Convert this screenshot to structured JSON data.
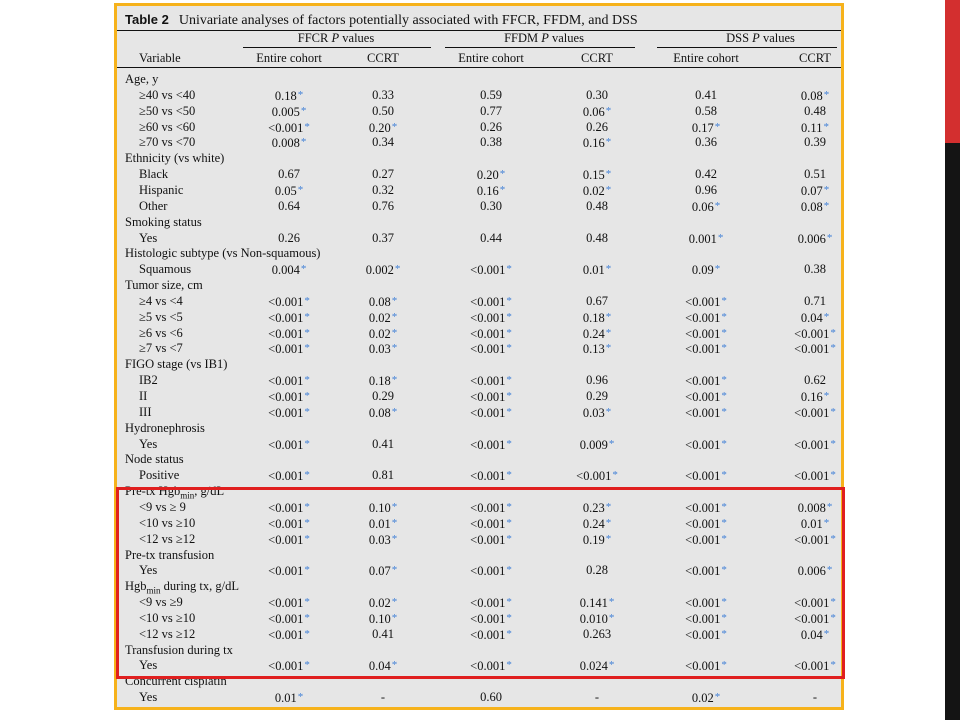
{
  "caption": {
    "table_no": "Table 2",
    "text": "Univariate analyses of factors potentially associated with FFCR, FFDM, and DSS"
  },
  "group_headers": [
    "FFCR P values",
    "FFDM P values",
    "DSS P values"
  ],
  "col_headers": [
    "Variable",
    "Entire cohort",
    "CCRT",
    "Entire cohort",
    "CCRT",
    "Entire cohort",
    "CCRT"
  ],
  "colors": {
    "frame": "#f6b21b",
    "highlight": "#e01f1f",
    "asterisk": "#3f7fd6",
    "accent": "#d32f2f"
  },
  "rows": [
    {
      "t": "h",
      "label": "Age, y"
    },
    {
      "t": "d",
      "label": "≥40 vs <40",
      "v": [
        "0.18*",
        "0.33",
        "0.59",
        "0.30",
        "0.41",
        "0.08*"
      ]
    },
    {
      "t": "d",
      "label": "≥50 vs <50",
      "v": [
        "0.005*",
        "0.50",
        "0.77",
        "0.06*",
        "0.58",
        "0.48"
      ]
    },
    {
      "t": "d",
      "label": "≥60 vs <60",
      "v": [
        "<0.001*",
        "0.20*",
        "0.26",
        "0.26",
        "0.17*",
        "0.11*"
      ]
    },
    {
      "t": "d",
      "label": "≥70 vs <70",
      "v": [
        "0.008*",
        "0.34",
        "0.38",
        "0.16*",
        "0.36",
        "0.39"
      ]
    },
    {
      "t": "h",
      "label": "Ethnicity (vs white)"
    },
    {
      "t": "d",
      "label": "Black",
      "v": [
        "0.67",
        "0.27",
        "0.20*",
        "0.15*",
        "0.42",
        "0.51"
      ]
    },
    {
      "t": "d",
      "label": "Hispanic",
      "v": [
        "0.05*",
        "0.32",
        "0.16*",
        "0.02*",
        "0.96",
        "0.07*"
      ]
    },
    {
      "t": "d",
      "label": "Other",
      "v": [
        "0.64",
        "0.76",
        "0.30",
        "0.48",
        "0.06*",
        "0.08*"
      ]
    },
    {
      "t": "h",
      "label": "Smoking status"
    },
    {
      "t": "d",
      "label": "Yes",
      "v": [
        "0.26",
        "0.37",
        "0.44",
        "0.48",
        "0.001*",
        "0.006*"
      ]
    },
    {
      "t": "h",
      "label": "Histologic subtype (vs Non-squamous)"
    },
    {
      "t": "d",
      "label": "Squamous",
      "v": [
        "0.004*",
        "0.002*",
        "<0.001*",
        "0.01*",
        "0.09*",
        "0.38"
      ]
    },
    {
      "t": "h",
      "label": "Tumor size, cm"
    },
    {
      "t": "d",
      "label": "≥4 vs <4",
      "v": [
        "<0.001*",
        "0.08*",
        "<0.001*",
        "0.67",
        "<0.001*",
        "0.71"
      ]
    },
    {
      "t": "d",
      "label": "≥5 vs <5",
      "v": [
        "<0.001*",
        "0.02*",
        "<0.001*",
        "0.18*",
        "<0.001*",
        "0.04*"
      ]
    },
    {
      "t": "d",
      "label": "≥6 vs <6",
      "v": [
        "<0.001*",
        "0.02*",
        "<0.001*",
        "0.24*",
        "<0.001*",
        "<0.001*"
      ]
    },
    {
      "t": "d",
      "label": "≥7 vs <7",
      "v": [
        "<0.001*",
        "0.03*",
        "<0.001*",
        "0.13*",
        "<0.001*",
        "<0.001*"
      ]
    },
    {
      "t": "h",
      "label": "FIGO stage (vs IB1)"
    },
    {
      "t": "d",
      "label": "IB2",
      "v": [
        "<0.001*",
        "0.18*",
        "<0.001*",
        "0.96",
        "<0.001*",
        "0.62"
      ]
    },
    {
      "t": "d",
      "label": "II",
      "v": [
        "<0.001*",
        "0.29",
        "<0.001*",
        "0.29",
        "<0.001*",
        "0.16*"
      ]
    },
    {
      "t": "d",
      "label": "III",
      "v": [
        "<0.001*",
        "0.08*",
        "<0.001*",
        "0.03*",
        "<0.001*",
        "<0.001*"
      ]
    },
    {
      "t": "h",
      "label": "Hydronephrosis"
    },
    {
      "t": "d",
      "label": "Yes",
      "v": [
        "<0.001*",
        "0.41",
        "<0.001*",
        "0.009*",
        "<0.001*",
        "<0.001*"
      ]
    },
    {
      "t": "h",
      "label": "Node status"
    },
    {
      "t": "d",
      "label": "Positive",
      "v": [
        "<0.001*",
        "0.81",
        "<0.001*",
        "<0.001*",
        "<0.001*",
        "<0.001*"
      ]
    },
    {
      "t": "h",
      "label": "Pre-tx Hgb",
      "sub": "min",
      "suffix": ", g/dL"
    },
    {
      "t": "d",
      "label": "<9 vs ≥ 9",
      "v": [
        "<0.001*",
        "0.10*",
        "<0.001*",
        "0.23*",
        "<0.001*",
        "0.008*"
      ]
    },
    {
      "t": "d",
      "label": "<10 vs ≥10",
      "v": [
        "<0.001*",
        "0.01*",
        "<0.001*",
        "0.24*",
        "<0.001*",
        "0.01*"
      ]
    },
    {
      "t": "d",
      "label": "<12 vs ≥12",
      "v": [
        "<0.001*",
        "0.03*",
        "<0.001*",
        "0.19*",
        "<0.001*",
        "<0.001*"
      ]
    },
    {
      "t": "h",
      "label": "Pre-tx transfusion"
    },
    {
      "t": "d",
      "label": "Yes",
      "v": [
        "<0.001*",
        "0.07*",
        "<0.001*",
        "0.28",
        "<0.001*",
        "0.006*"
      ]
    },
    {
      "t": "h",
      "label": "Hgb",
      "sub": "min",
      "suffix": " during tx, g/dL"
    },
    {
      "t": "d",
      "label": "<9 vs ≥9",
      "v": [
        "<0.001*",
        "0.02*",
        "<0.001*",
        "0.141*",
        "<0.001*",
        "<0.001*"
      ]
    },
    {
      "t": "d",
      "label": "<10 vs ≥10",
      "v": [
        "<0.001*",
        "0.10*",
        "<0.001*",
        "0.010*",
        "<0.001*",
        "<0.001*"
      ]
    },
    {
      "t": "d",
      "label": "<12 vs ≥12",
      "v": [
        "<0.001*",
        "0.41",
        "<0.001*",
        "0.263",
        "<0.001*",
        "0.04*"
      ]
    },
    {
      "t": "h",
      "label": "Transfusion during tx"
    },
    {
      "t": "d",
      "label": "Yes",
      "v": [
        "<0.001*",
        "0.04*",
        "<0.001*",
        "0.024*",
        "<0.001*",
        "<0.001*"
      ]
    },
    {
      "t": "h",
      "label": "Concurrent cisplatin"
    },
    {
      "t": "d",
      "label": "Yes",
      "v": [
        "0.01*",
        "-",
        "0.60",
        "-",
        "0.02*",
        "-"
      ]
    }
  ]
}
